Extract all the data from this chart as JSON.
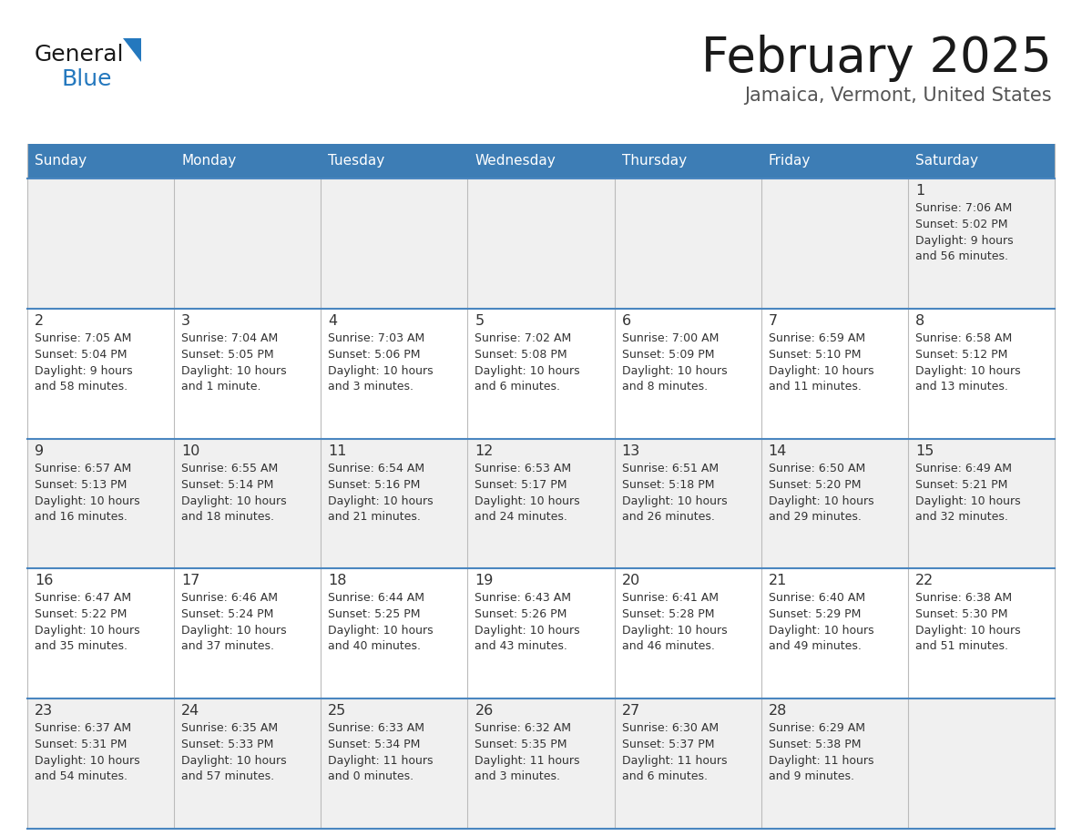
{
  "title": "February 2025",
  "subtitle": "Jamaica, Vermont, United States",
  "days_of_week": [
    "Sunday",
    "Monday",
    "Tuesday",
    "Wednesday",
    "Thursday",
    "Friday",
    "Saturday"
  ],
  "header_bg": "#3d7db5",
  "header_text": "#ffffff",
  "cell_bg_odd": "#f0f0f0",
  "cell_bg_even": "#ffffff",
  "border_color": "#4a86c0",
  "text_color": "#333333",
  "title_color": "#1a1a1a",
  "subtitle_color": "#555555",
  "logo_general_color": "#1a1a1a",
  "logo_blue_color": "#2478be",
  "calendar_data": [
    [
      {
        "day": null,
        "sunrise": null,
        "sunset": null,
        "daylight": null
      },
      {
        "day": null,
        "sunrise": null,
        "sunset": null,
        "daylight": null
      },
      {
        "day": null,
        "sunrise": null,
        "sunset": null,
        "daylight": null
      },
      {
        "day": null,
        "sunrise": null,
        "sunset": null,
        "daylight": null
      },
      {
        "day": null,
        "sunrise": null,
        "sunset": null,
        "daylight": null
      },
      {
        "day": null,
        "sunrise": null,
        "sunset": null,
        "daylight": null
      },
      {
        "day": 1,
        "sunrise": "7:06 AM",
        "sunset": "5:02 PM",
        "daylight": "9 hours\nand 56 minutes."
      }
    ],
    [
      {
        "day": 2,
        "sunrise": "7:05 AM",
        "sunset": "5:04 PM",
        "daylight": "9 hours\nand 58 minutes."
      },
      {
        "day": 3,
        "sunrise": "7:04 AM",
        "sunset": "5:05 PM",
        "daylight": "10 hours\nand 1 minute."
      },
      {
        "day": 4,
        "sunrise": "7:03 AM",
        "sunset": "5:06 PM",
        "daylight": "10 hours\nand 3 minutes."
      },
      {
        "day": 5,
        "sunrise": "7:02 AM",
        "sunset": "5:08 PM",
        "daylight": "10 hours\nand 6 minutes."
      },
      {
        "day": 6,
        "sunrise": "7:00 AM",
        "sunset": "5:09 PM",
        "daylight": "10 hours\nand 8 minutes."
      },
      {
        "day": 7,
        "sunrise": "6:59 AM",
        "sunset": "5:10 PM",
        "daylight": "10 hours\nand 11 minutes."
      },
      {
        "day": 8,
        "sunrise": "6:58 AM",
        "sunset": "5:12 PM",
        "daylight": "10 hours\nand 13 minutes."
      }
    ],
    [
      {
        "day": 9,
        "sunrise": "6:57 AM",
        "sunset": "5:13 PM",
        "daylight": "10 hours\nand 16 minutes."
      },
      {
        "day": 10,
        "sunrise": "6:55 AM",
        "sunset": "5:14 PM",
        "daylight": "10 hours\nand 18 minutes."
      },
      {
        "day": 11,
        "sunrise": "6:54 AM",
        "sunset": "5:16 PM",
        "daylight": "10 hours\nand 21 minutes."
      },
      {
        "day": 12,
        "sunrise": "6:53 AM",
        "sunset": "5:17 PM",
        "daylight": "10 hours\nand 24 minutes."
      },
      {
        "day": 13,
        "sunrise": "6:51 AM",
        "sunset": "5:18 PM",
        "daylight": "10 hours\nand 26 minutes."
      },
      {
        "day": 14,
        "sunrise": "6:50 AM",
        "sunset": "5:20 PM",
        "daylight": "10 hours\nand 29 minutes."
      },
      {
        "day": 15,
        "sunrise": "6:49 AM",
        "sunset": "5:21 PM",
        "daylight": "10 hours\nand 32 minutes."
      }
    ],
    [
      {
        "day": 16,
        "sunrise": "6:47 AM",
        "sunset": "5:22 PM",
        "daylight": "10 hours\nand 35 minutes."
      },
      {
        "day": 17,
        "sunrise": "6:46 AM",
        "sunset": "5:24 PM",
        "daylight": "10 hours\nand 37 minutes."
      },
      {
        "day": 18,
        "sunrise": "6:44 AM",
        "sunset": "5:25 PM",
        "daylight": "10 hours\nand 40 minutes."
      },
      {
        "day": 19,
        "sunrise": "6:43 AM",
        "sunset": "5:26 PM",
        "daylight": "10 hours\nand 43 minutes."
      },
      {
        "day": 20,
        "sunrise": "6:41 AM",
        "sunset": "5:28 PM",
        "daylight": "10 hours\nand 46 minutes."
      },
      {
        "day": 21,
        "sunrise": "6:40 AM",
        "sunset": "5:29 PM",
        "daylight": "10 hours\nand 49 minutes."
      },
      {
        "day": 22,
        "sunrise": "6:38 AM",
        "sunset": "5:30 PM",
        "daylight": "10 hours\nand 51 minutes."
      }
    ],
    [
      {
        "day": 23,
        "sunrise": "6:37 AM",
        "sunset": "5:31 PM",
        "daylight": "10 hours\nand 54 minutes."
      },
      {
        "day": 24,
        "sunrise": "6:35 AM",
        "sunset": "5:33 PM",
        "daylight": "10 hours\nand 57 minutes."
      },
      {
        "day": 25,
        "sunrise": "6:33 AM",
        "sunset": "5:34 PM",
        "daylight": "11 hours\nand 0 minutes."
      },
      {
        "day": 26,
        "sunrise": "6:32 AM",
        "sunset": "5:35 PM",
        "daylight": "11 hours\nand 3 minutes."
      },
      {
        "day": 27,
        "sunrise": "6:30 AM",
        "sunset": "5:37 PM",
        "daylight": "11 hours\nand 6 minutes."
      },
      {
        "day": 28,
        "sunrise": "6:29 AM",
        "sunset": "5:38 PM",
        "daylight": "11 hours\nand 9 minutes."
      },
      {
        "day": null,
        "sunrise": null,
        "sunset": null,
        "daylight": null
      }
    ]
  ]
}
